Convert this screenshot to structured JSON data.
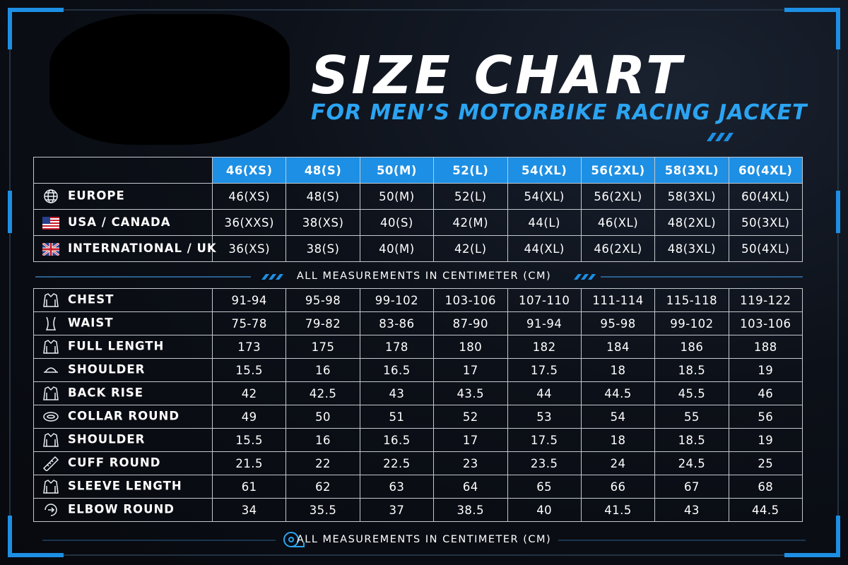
{
  "header": {
    "title": "SIZE CHART",
    "subtitle": "FOR MEN’S MOTORBIKE RACING JACKET"
  },
  "size_table": {
    "columns": [
      "46(XS)",
      "48(S)",
      "50(M)",
      "52(L)",
      "54(XL)",
      "56(2XL)",
      "58(3XL)",
      "60(4XL)"
    ],
    "rows": [
      {
        "label": "EUROPE",
        "values": [
          "46(XS)",
          "48(S)",
          "50(M)",
          "52(L)",
          "54(XL)",
          "56(2XL)",
          "58(3XL)",
          "60(4XL)"
        ]
      },
      {
        "label": "USA / CANADA",
        "values": [
          "36(XXS)",
          "38(XS)",
          "40(S)",
          "42(M)",
          "44(L)",
          "46(XL)",
          "48(2XL)",
          "50(3XL)"
        ]
      },
      {
        "label": "INTERNATIONAL / UK",
        "values": [
          "36(XS)",
          "38(S)",
          "40(M)",
          "42(L)",
          "44(XL)",
          "46(2XL)",
          "48(3XL)",
          "50(4XL)"
        ]
      }
    ]
  },
  "divider_note": "ALL MEASUREMENTS IN CENTIMETER (CM)",
  "measurement_table": {
    "rows": [
      {
        "label": "CHEST",
        "values": [
          "91-94",
          "95-98",
          "99-102",
          "103-106",
          "107-110",
          "111-114",
          "115-118",
          "119-122"
        ]
      },
      {
        "label": "WAIST",
        "values": [
          "75-78",
          "79-82",
          "83-86",
          "87-90",
          "91-94",
          "95-98",
          "99-102",
          "103-106"
        ]
      },
      {
        "label": "FULL LENGTH",
        "values": [
          173,
          175,
          178,
          180,
          182,
          184,
          186,
          188
        ]
      },
      {
        "label": "SHOULDER",
        "values": [
          15.5,
          16,
          16.5,
          17,
          17.5,
          18,
          18.5,
          19
        ]
      },
      {
        "label": "BACK RISE",
        "values": [
          42,
          42.5,
          43,
          43.5,
          44,
          44.5,
          45.5,
          46
        ]
      },
      {
        "label": "COLLAR ROUND",
        "values": [
          49,
          50,
          51,
          52,
          53,
          54,
          55,
          56
        ]
      },
      {
        "label": "SHOULDER",
        "values": [
          15.5,
          16,
          16.5,
          17,
          17.5,
          18,
          18.5,
          19
        ]
      },
      {
        "label": "CUFF ROUND",
        "values": [
          21.5,
          22,
          22.5,
          23,
          23.5,
          24,
          24.5,
          25
        ]
      },
      {
        "label": "SLEEVE LENGTH",
        "values": [
          61,
          62,
          63,
          64,
          65,
          66,
          67,
          68
        ]
      },
      {
        "label": "ELBOW ROUND",
        "values": [
          34,
          35.5,
          37,
          38.5,
          40,
          41.5,
          43,
          44.5
        ]
      }
    ]
  },
  "footer_note": "ALL MEASUREMENTS IN CENTIMETER (CM)"
}
